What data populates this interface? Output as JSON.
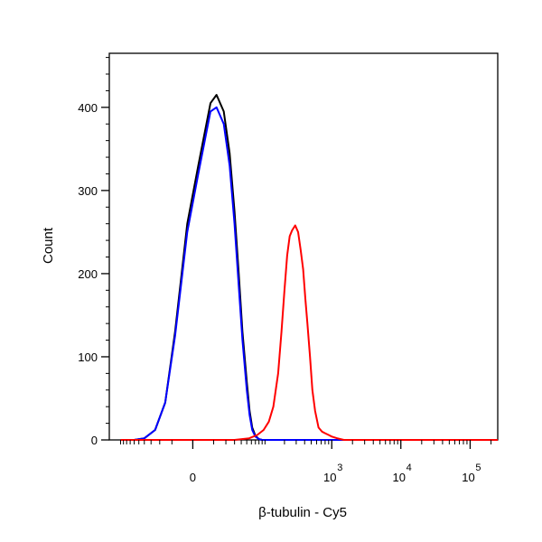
{
  "chart_data": {
    "type": "line",
    "title": "",
    "xlabel": "β-tubulin - Cy5",
    "ylabel": "Count",
    "x_scale": "biexponential",
    "xlim": [
      -150,
      250000
    ],
    "ylim": [
      0,
      465
    ],
    "x_tick_labels": [
      {
        "value": 0,
        "base": "0",
        "exponent": ""
      },
      {
        "value": 1000,
        "base": "10",
        "exponent": "3"
      },
      {
        "value": 10000,
        "base": "10",
        "exponent": "4"
      },
      {
        "value": 100000,
        "base": "10",
        "exponent": "5"
      }
    ],
    "y_ticks": [
      0,
      100,
      200,
      300,
      400
    ],
    "y_tick_labels": [
      "0",
      "100",
      "200",
      "300",
      "400"
    ],
    "grid": false,
    "legend": "none",
    "series": [
      {
        "color": "#000000",
        "x": [
          -60,
          -40,
          -25,
          -15,
          -8,
          -2,
          2,
          8,
          12,
          18,
          24,
          30,
          36,
          42,
          50,
          56,
          62,
          70,
          80,
          90,
          100,
          200,
          1000,
          100000,
          250000
        ],
        "y": [
          0,
          2,
          12,
          45,
          130,
          260,
          330,
          405,
          415,
          395,
          345,
          275,
          200,
          130,
          70,
          35,
          15,
          5,
          1,
          0,
          0,
          0,
          0,
          0,
          0
        ]
      },
      {
        "color": "#0000ff",
        "x": [
          -60,
          -40,
          -25,
          -15,
          -8,
          -2,
          2,
          8,
          12,
          18,
          24,
          30,
          36,
          42,
          50,
          56,
          62,
          70,
          80,
          90,
          100,
          200,
          1000,
          100000,
          250000
        ],
        "y": [
          0,
          2,
          12,
          45,
          125,
          250,
          320,
          395,
          400,
          380,
          330,
          260,
          185,
          120,
          60,
          30,
          12,
          4,
          1,
          0,
          0,
          0,
          0,
          0,
          0
        ]
      },
      {
        "color": "#ff0000",
        "x": [
          -100,
          30,
          55,
          75,
          95,
          115,
          135,
          160,
          180,
          200,
          220,
          240,
          260,
          290,
          320,
          350,
          380,
          410,
          440,
          480,
          520,
          570,
          640,
          720,
          800,
          900,
          1000,
          1200,
          1500,
          2000,
          3000,
          10000,
          100000,
          250000
        ],
        "y": [
          0,
          0,
          2,
          6,
          12,
          22,
          40,
          80,
          130,
          180,
          222,
          245,
          252,
          258,
          250,
          228,
          205,
          170,
          140,
          100,
          60,
          35,
          15,
          10,
          8,
          6,
          4,
          2,
          0,
          0,
          0,
          0,
          0,
          0
        ]
      }
    ]
  }
}
